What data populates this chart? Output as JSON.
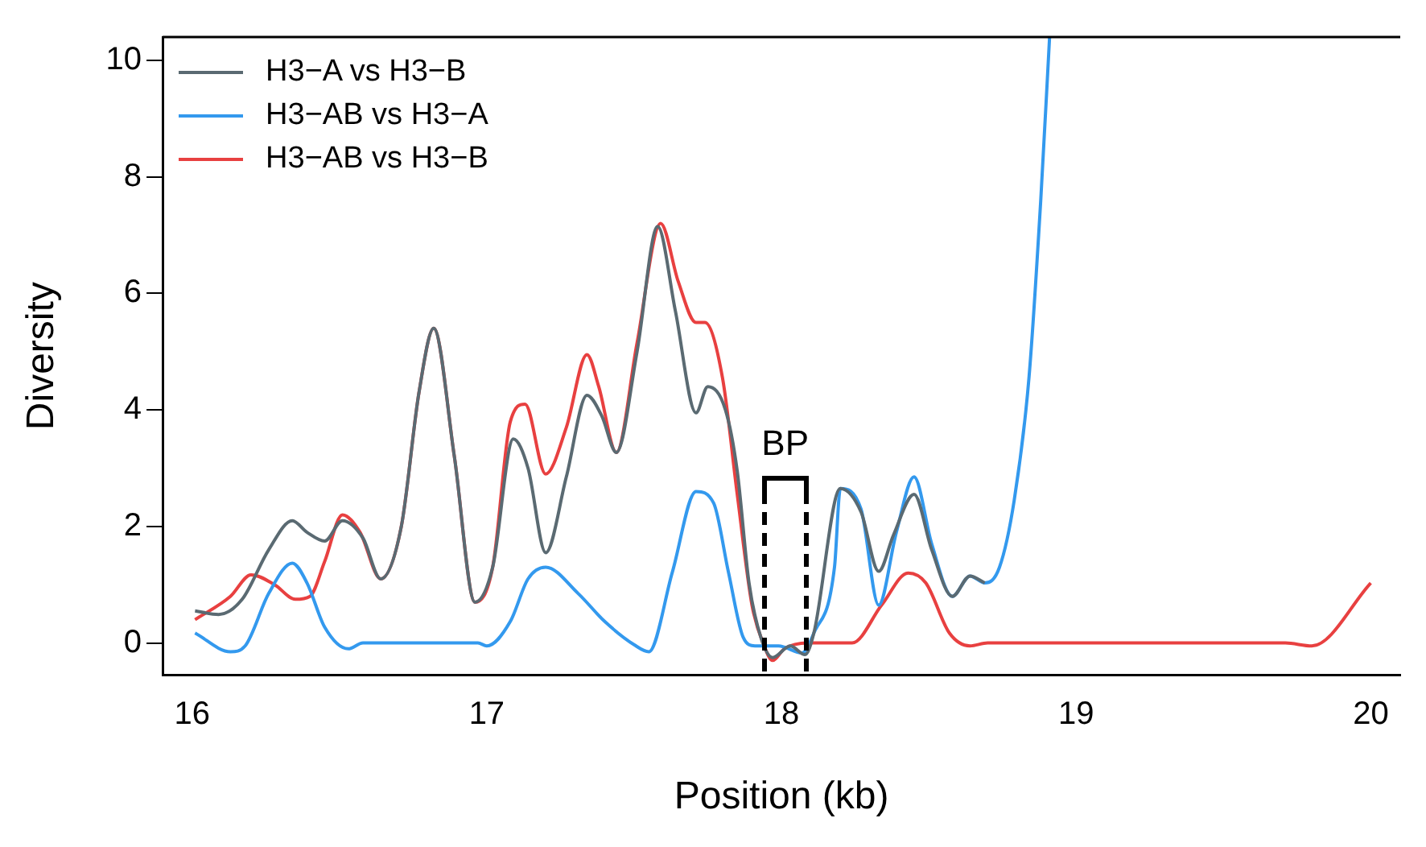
{
  "chart_data": {
    "type": "line",
    "xlabel": "Position (kb)",
    "ylabel": "Diversity",
    "xlim": [
      15.9,
      20.1
    ],
    "ylim": [
      -0.55,
      10.4
    ],
    "xticks": [
      16,
      17,
      18,
      19,
      20
    ],
    "yticks": [
      0,
      2,
      4,
      6,
      8,
      10
    ],
    "grid": false,
    "legend": "top left",
    "marker": "none",
    "line_style": "solid",
    "annotations": [
      "BP"
    ],
    "series": [
      {
        "name": "H3−A vs H3−B",
        "color": "#5a6a72",
        "x": [
          16.01,
          16.09,
          16.17,
          16.26,
          16.34,
          16.39,
          16.45,
          16.51,
          16.58,
          16.64,
          16.71,
          16.77,
          16.82,
          16.89,
          16.96,
          17.02,
          17.09,
          17.14,
          17.2,
          17.27,
          17.34,
          17.39,
          17.44,
          17.51,
          17.58,
          17.64,
          17.71,
          17.75,
          17.81,
          17.85,
          17.89,
          17.93,
          17.97,
          18.03,
          18.08,
          18.11,
          18.2,
          18.27,
          18.33,
          18.38,
          18.45,
          18.51,
          18.58,
          18.64,
          18.69
        ],
        "values": [
          0.55,
          0.49,
          0.75,
          1.6,
          2.1,
          1.9,
          1.75,
          2.1,
          1.8,
          1.1,
          2.0,
          4.3,
          5.4,
          3.2,
          0.7,
          1.3,
          3.5,
          3.0,
          1.55,
          2.85,
          4.25,
          3.9,
          3.27,
          5.0,
          7.15,
          5.7,
          3.95,
          4.4,
          4.0,
          2.95,
          1.03,
          0.1,
          -0.25,
          -0.05,
          -0.2,
          0.17,
          2.65,
          2.25,
          1.23,
          1.85,
          2.55,
          1.6,
          0.8,
          1.15,
          1.03
        ]
      },
      {
        "name": "H3−AB vs H3−A",
        "color": "#3399ee",
        "x": [
          16.01,
          16.13,
          16.18,
          16.26,
          16.34,
          16.39,
          16.45,
          16.53,
          16.58,
          16.97,
          17.0,
          17.08,
          17.14,
          17.2,
          17.31,
          17.4,
          17.5,
          17.55,
          17.63,
          17.71,
          17.77,
          17.82,
          17.87,
          17.91,
          17.99,
          18.07,
          18.11,
          18.18,
          18.2,
          18.27,
          18.33,
          18.39,
          18.45,
          18.51,
          18.58,
          18.64,
          18.69,
          18.74,
          18.79,
          18.84,
          18.88,
          18.91
        ],
        "values": [
          0.17,
          -0.15,
          -0.05,
          0.85,
          1.37,
          1.03,
          0.27,
          -0.1,
          0,
          0,
          -0.05,
          0.37,
          1.1,
          1.3,
          0.85,
          0.37,
          -0.03,
          -0.15,
          1.22,
          2.6,
          2.4,
          1.22,
          0.1,
          -0.05,
          -0.05,
          -0.17,
          0.17,
          1.3,
          2.65,
          2.3,
          0.65,
          1.9,
          2.85,
          1.7,
          0.8,
          1.15,
          1.03,
          1.3,
          2.45,
          4.55,
          7.6,
          10.4
        ]
      },
      {
        "name": "H3−AB vs H3−B",
        "color": "#e84040",
        "x": [
          16.01,
          16.13,
          16.2,
          16.28,
          16.35,
          16.4,
          16.45,
          16.51,
          16.57,
          16.64,
          16.71,
          16.77,
          16.82,
          16.89,
          16.96,
          17.02,
          17.08,
          17.13,
          17.2,
          17.27,
          17.34,
          17.38,
          17.44,
          17.51,
          17.59,
          17.65,
          17.71,
          17.74,
          17.8,
          17.85,
          17.9,
          17.94,
          17.97,
          18.01,
          18.09,
          18.18,
          18.24,
          18.34,
          18.43,
          18.49,
          18.57,
          18.64,
          18.7,
          19.71,
          19.8,
          20.0
        ],
        "values": [
          0.4,
          0.8,
          1.17,
          1.0,
          0.75,
          0.8,
          1.4,
          2.2,
          1.9,
          1.1,
          2.0,
          4.3,
          5.4,
          3.2,
          0.7,
          1.3,
          3.8,
          4.1,
          2.9,
          3.7,
          4.95,
          4.4,
          3.27,
          5.15,
          7.2,
          6.2,
          5.5,
          5.5,
          4.55,
          2.55,
          0.65,
          -0.03,
          -0.3,
          -0.1,
          0,
          0,
          0,
          0.65,
          1.2,
          1.03,
          0.17,
          -0.05,
          0,
          0,
          -0.05,
          1.03
        ]
      }
    ]
  }
}
